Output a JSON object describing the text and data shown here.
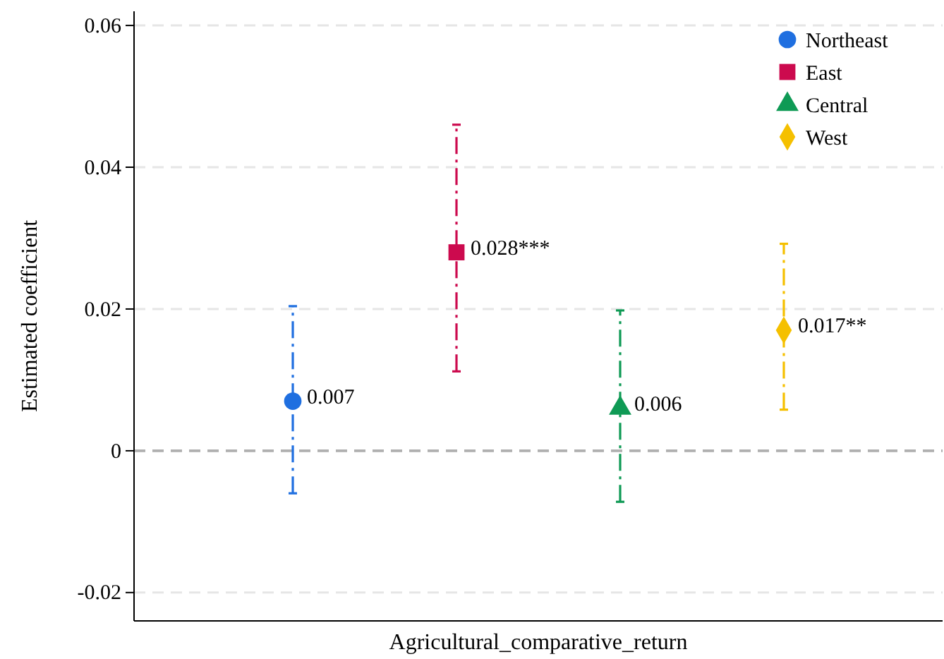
{
  "chart_data": {
    "type": "scatter",
    "xlabel": "Agricultural_comparative_return",
    "ylabel": "Estimated coefficient",
    "categories": [
      null,
      null,
      null,
      null
    ],
    "ylim": [
      -0.024,
      0.062
    ],
    "yticks": [
      -0.02,
      0,
      0.02,
      0.04,
      0.06
    ],
    "grid": "y",
    "legend": "top right",
    "ref_lines": [
      {
        "axis": "y",
        "value": 0,
        "line_style": "dashed",
        "color": "#b0b0b0"
      }
    ],
    "series": [
      {
        "name": "Northeast",
        "color": "#1f6fe0",
        "marker": "circle",
        "values": [
          0.007,
          null,
          null,
          null
        ],
        "errors": [
          [
            -0.006,
            0.0204
          ],
          null,
          null,
          null
        ],
        "value_labels": [
          "0.007",
          null,
          null,
          null
        ]
      },
      {
        "name": "East",
        "color": "#cc0a4e",
        "marker": "square",
        "values": [
          null,
          0.028,
          null,
          null
        ],
        "errors": [
          null,
          [
            0.0112,
            0.046
          ],
          null,
          null
        ],
        "value_labels": [
          null,
          "0.028***",
          null,
          null
        ]
      },
      {
        "name": "Central",
        "color": "#0f9a55",
        "marker": "triangle",
        "values": [
          null,
          null,
          0.006,
          null
        ],
        "errors": [
          null,
          null,
          [
            -0.0072,
            0.0198
          ],
          null
        ],
        "value_labels": [
          null,
          null,
          "0.006",
          null
        ]
      },
      {
        "name": "West",
        "color": "#f5c000",
        "marker": "diamond",
        "values": [
          null,
          null,
          null,
          0.017
        ],
        "errors": [
          null,
          null,
          null,
          [
            0.0058,
            0.0292
          ]
        ],
        "value_labels": [
          null,
          null,
          null,
          "0.017**"
        ]
      }
    ]
  }
}
